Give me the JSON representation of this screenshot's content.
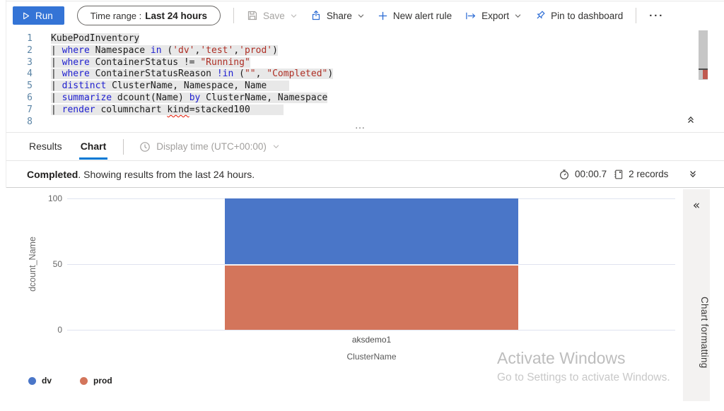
{
  "toolbar": {
    "run": "Run",
    "time_range_label": "Time range :",
    "time_range_value": "Last 24 hours",
    "save": "Save",
    "share": "Share",
    "new_alert_rule": "New alert rule",
    "export": "Export",
    "pin": "Pin to dashboard",
    "more": "···"
  },
  "editor": {
    "lines": [
      {
        "n": "1",
        "tokens": [
          {
            "c": "id",
            "t": "KubePodInventory"
          }
        ]
      },
      {
        "n": "2",
        "tokens": [
          {
            "c": "id",
            "t": "| "
          },
          {
            "c": "kw",
            "t": "where"
          },
          {
            "c": "id",
            "t": " Namespace "
          },
          {
            "c": "kw",
            "t": "in"
          },
          {
            "c": "id",
            "t": " ("
          },
          {
            "c": "str",
            "t": "'dv'"
          },
          {
            "c": "id",
            "t": ","
          },
          {
            "c": "str",
            "t": "'test'"
          },
          {
            "c": "id",
            "t": ","
          },
          {
            "c": "str",
            "t": "'prod'"
          },
          {
            "c": "id",
            "t": ")"
          }
        ]
      },
      {
        "n": "3",
        "tokens": [
          {
            "c": "id",
            "t": "| "
          },
          {
            "c": "kw",
            "t": "where"
          },
          {
            "c": "id",
            "t": " ContainerStatus != "
          },
          {
            "c": "str",
            "t": "\"Running\""
          }
        ]
      },
      {
        "n": "4",
        "tokens": [
          {
            "c": "id",
            "t": "| "
          },
          {
            "c": "kw",
            "t": "where"
          },
          {
            "c": "id",
            "t": " ContainerStatusReason "
          },
          {
            "c": "kw",
            "t": "!in"
          },
          {
            "c": "id",
            "t": " ("
          },
          {
            "c": "str",
            "t": "\"\""
          },
          {
            "c": "id",
            "t": ", "
          },
          {
            "c": "str",
            "t": "\"Completed\""
          },
          {
            "c": "id",
            "t": ")"
          }
        ]
      },
      {
        "n": "5",
        "tokens": [
          {
            "c": "id",
            "t": "| "
          },
          {
            "c": "kw",
            "t": "distinct"
          },
          {
            "c": "id",
            "t": " ClusterName, Namespace, Name    "
          }
        ]
      },
      {
        "n": "6",
        "tokens": [
          {
            "c": "id",
            "t": "| "
          },
          {
            "c": "kw",
            "t": "summarize"
          },
          {
            "c": "id",
            "t": " dcount(Name) "
          },
          {
            "c": "kw",
            "t": "by"
          },
          {
            "c": "id",
            "t": " ClusterName, Namespace"
          }
        ]
      },
      {
        "n": "7",
        "tokens": [
          {
            "c": "id",
            "t": "| "
          },
          {
            "c": "kw",
            "t": "render"
          },
          {
            "c": "id",
            "t": " columnchart "
          },
          {
            "c": "sq",
            "t": "kind"
          },
          {
            "c": "id",
            "t": "=stacked100      "
          }
        ]
      },
      {
        "n": "8",
        "tokens": []
      }
    ]
  },
  "tabs": {
    "results": "Results",
    "chart": "Chart",
    "display_time": "Display time (UTC+00:00)"
  },
  "status": {
    "state": "Completed",
    "message": ". Showing results from the last 24 hours.",
    "elapsed": "00:00.7",
    "records": "2 records"
  },
  "chart_data": {
    "type": "bar",
    "subtype": "stacked100-column",
    "categories": [
      "aksdemo1"
    ],
    "series": [
      {
        "name": "dv",
        "color": "#4a76c8",
        "percent": [
          50
        ]
      },
      {
        "name": "prod",
        "color": "#d3755b",
        "percent": [
          50
        ]
      }
    ],
    "xlabel": "ClusterName",
    "ylabel": "dcount_Name",
    "yticks": [
      0,
      50,
      100
    ],
    "ylim": [
      0,
      100
    ],
    "grid": "horizontal",
    "legend_position": "bottom-left"
  },
  "side_panel": {
    "title": "Chart formatting"
  },
  "watermark": {
    "line1": "Activate Windows",
    "line2": "Go to Settings to activate Windows."
  },
  "colors": {
    "accent": "#0078d4",
    "run_button": "#3474d6",
    "keyword": "#2020d0",
    "string": "#ae2e24",
    "line_number": "#5c85a6",
    "selection": "#e8e8e8",
    "bar_blue": "#4a76c8",
    "bar_orange": "#d3755b"
  }
}
